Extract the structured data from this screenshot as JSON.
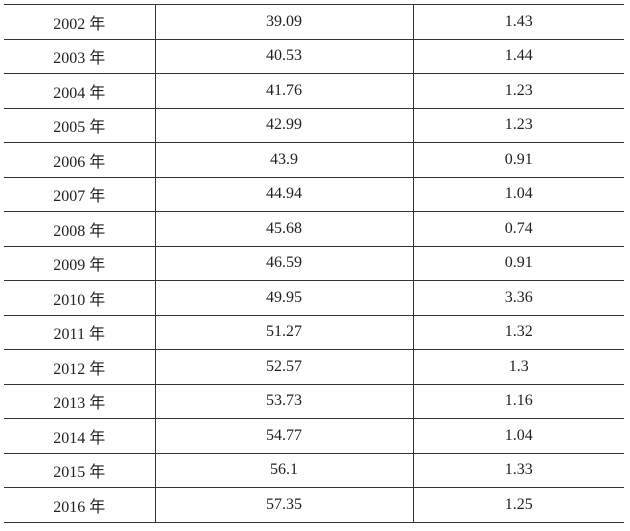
{
  "table": {
    "rows": [
      {
        "year": "2002 年",
        "value": "39.09",
        "change": "1.43"
      },
      {
        "year": "2003 年",
        "value": "40.53",
        "change": "1.44"
      },
      {
        "year": "2004 年",
        "value": "41.76",
        "change": "1.23"
      },
      {
        "year": "2005 年",
        "value": "42.99",
        "change": "1.23"
      },
      {
        "year": "2006 年",
        "value": "43.9",
        "change": "0.91"
      },
      {
        "year": "2007 年",
        "value": "44.94",
        "change": "1.04"
      },
      {
        "year": "2008 年",
        "value": "45.68",
        "change": "0.74"
      },
      {
        "year": "2009 年",
        "value": "46.59",
        "change": "0.91"
      },
      {
        "year": "2010 年",
        "value": "49.95",
        "change": "3.36"
      },
      {
        "year": "2011 年",
        "value": "51.27",
        "change": "1.32"
      },
      {
        "year": "2012 年",
        "value": "52.57",
        "change": "1.3"
      },
      {
        "year": "2013 年",
        "value": "53.73",
        "change": "1.16"
      },
      {
        "year": "2014 年",
        "value": "54.77",
        "change": "1.04"
      },
      {
        "year": "2015 年",
        "value": "56.1",
        "change": "1.33"
      },
      {
        "year": "2016 年",
        "value": "57.35",
        "change": "1.25"
      }
    ]
  }
}
